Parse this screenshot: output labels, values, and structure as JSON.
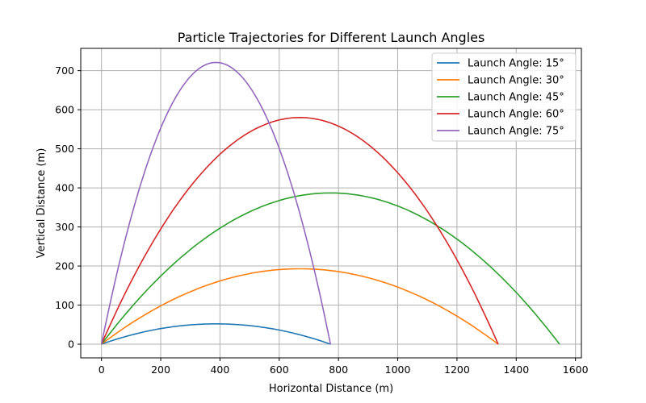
{
  "chart_data": {
    "type": "line",
    "title": "Particle Trajectories for Different Launch Angles",
    "xlabel": "Horizontal Distance (m)",
    "ylabel": "Vertical Distance (m)",
    "xlim": [
      -70,
      1620
    ],
    "ylim": [
      -35,
      757
    ],
    "xticks": [
      0,
      200,
      400,
      600,
      800,
      1000,
      1200,
      1400,
      1600
    ],
    "yticks": [
      0,
      100,
      200,
      300,
      400,
      500,
      600,
      700
    ],
    "grid": true,
    "legend_position": "top-right",
    "series": [
      {
        "name": "Launch Angle: 15°",
        "color": "#1f77b4",
        "angle_deg": 15,
        "range": 773,
        "max_height": 52
      },
      {
        "name": "Launch Angle: 30°",
        "color": "#ff7f0e",
        "angle_deg": 30,
        "range": 1339,
        "max_height": 193
      },
      {
        "name": "Launch Angle: 45°",
        "color": "#2ca02c",
        "angle_deg": 45,
        "range": 1546,
        "max_height": 387
      },
      {
        "name": "Launch Angle: 60°",
        "color": "#d62728",
        "angle_deg": 60,
        "range": 1339,
        "max_height": 580
      },
      {
        "name": "Launch Angle: 75°",
        "color": "#9467bd",
        "angle_deg": 75,
        "range": 773,
        "max_height": 721
      }
    ]
  }
}
